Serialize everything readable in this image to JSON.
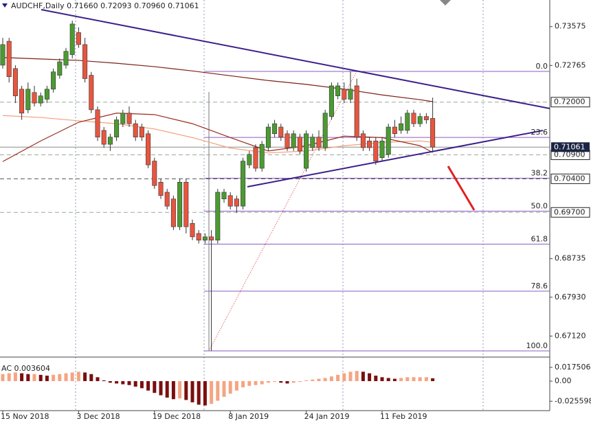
{
  "chart_data": {
    "type": "candlestick",
    "title": "AUDCHF,Daily  0.71660 0.72093 0.70960 0.71061",
    "categories": [
      "15 Nov 2018",
      null,
      null,
      null,
      null,
      null,
      null,
      null,
      null,
      null,
      null,
      null,
      "3 Dec 2018",
      null,
      null,
      null,
      null,
      null,
      null,
      null,
      null,
      null,
      null,
      null,
      "19 Dec 2018",
      null,
      null,
      null,
      null,
      null,
      null,
      null,
      null,
      null,
      null,
      null,
      "8 Jan 2019",
      null,
      null,
      null,
      null,
      null,
      null,
      null,
      null,
      null,
      null,
      null,
      "24 Jan 2019",
      null,
      null,
      null,
      null,
      null,
      null,
      null,
      null,
      null,
      null,
      null,
      "11 Feb 2019",
      null,
      null,
      null,
      null,
      null,
      null,
      null,
      null
    ],
    "candles": [
      [
        0.7277,
        0.7334,
        0.727,
        0.732
      ],
      [
        0.7327,
        0.7334,
        0.7241,
        0.7253
      ],
      [
        0.727,
        0.7277,
        0.7198,
        0.7213
      ],
      [
        0.7227,
        0.7234,
        0.7163,
        0.7177
      ],
      [
        0.7184,
        0.7241,
        0.7177,
        0.7227
      ],
      [
        0.722,
        0.7234,
        0.7191,
        0.7198
      ],
      [
        0.7198,
        0.722,
        0.7191,
        0.7213
      ],
      [
        0.7206,
        0.7234,
        0.7198,
        0.7227
      ],
      [
        0.7227,
        0.727,
        0.722,
        0.7263
      ],
      [
        0.7256,
        0.7291,
        0.7249,
        0.7284
      ],
      [
        0.7277,
        0.7313,
        0.727,
        0.7306
      ],
      [
        0.7299,
        0.737,
        0.7291,
        0.7363
      ],
      [
        0.7345,
        0.7356,
        0.7313,
        0.732
      ],
      [
        0.732,
        0.7334,
        0.7241,
        0.7249
      ],
      [
        0.7256,
        0.7263,
        0.7177,
        0.7184
      ],
      [
        0.7184,
        0.7191,
        0.7119,
        0.7127
      ],
      [
        0.7141,
        0.7148,
        0.7105,
        0.7112
      ],
      [
        0.7112,
        0.7134,
        0.7098,
        0.7127
      ],
      [
        0.7127,
        0.717,
        0.7119,
        0.7163
      ],
      [
        0.7155,
        0.7184,
        0.7148,
        0.7177
      ],
      [
        0.7177,
        0.7191,
        0.7148,
        0.7155
      ],
      [
        0.7155,
        0.7163,
        0.7119,
        0.7127
      ],
      [
        0.7148,
        0.7155,
        0.7119,
        0.7127
      ],
      [
        0.7134,
        0.7141,
        0.7062,
        0.7069
      ],
      [
        0.7077,
        0.7084,
        0.7019,
        0.7026
      ],
      [
        0.7033,
        0.704,
        0.6998,
        0.7005
      ],
      [
        0.7012,
        0.7019,
        0.6976,
        0.6983
      ],
      [
        0.6998,
        0.7005,
        0.6933,
        0.694
      ],
      [
        0.694,
        0.704,
        0.6933,
        0.7033
      ],
      [
        0.7033,
        0.704,
        0.6926,
        0.694
      ],
      [
        0.6947,
        0.6955,
        0.6912,
        0.6919
      ],
      [
        0.6926,
        0.6933,
        0.6905,
        0.6912
      ],
      [
        0.6912,
        0.6926,
        0.6905,
        0.6919
      ],
      [
        0.6919,
        0.6933,
        0.6681,
        0.6912
      ],
      [
        0.6912,
        0.7019,
        0.6905,
        0.7012
      ],
      [
        0.6998,
        0.7019,
        0.699,
        0.7012
      ],
      [
        0.7005,
        0.7012,
        0.6976,
        0.6983
      ],
      [
        0.6998,
        0.7005,
        0.6969,
        0.6983
      ],
      [
        0.6983,
        0.7084,
        0.6976,
        0.7077
      ],
      [
        0.7069,
        0.7098,
        0.7062,
        0.7091
      ],
      [
        0.7105,
        0.7112,
        0.7055,
        0.7062
      ],
      [
        0.7062,
        0.7119,
        0.7055,
        0.7112
      ],
      [
        0.7105,
        0.7155,
        0.7098,
        0.7148
      ],
      [
        0.7134,
        0.7163,
        0.7127,
        0.7155
      ],
      [
        0.7148,
        0.7155,
        0.7119,
        0.7127
      ],
      [
        0.7134,
        0.7141,
        0.7098,
        0.7105
      ],
      [
        0.7105,
        0.7141,
        0.7098,
        0.7134
      ],
      [
        0.7127,
        0.7134,
        0.7091,
        0.7098
      ],
      [
        0.7062,
        0.7141,
        0.7055,
        0.7134
      ],
      [
        0.7105,
        0.7134,
        0.7098,
        0.7127
      ],
      [
        0.7127,
        0.7141,
        0.7098,
        0.7105
      ],
      [
        0.7105,
        0.7184,
        0.7098,
        0.7177
      ],
      [
        0.717,
        0.7241,
        0.7163,
        0.7234
      ],
      [
        0.7213,
        0.7241,
        0.7206,
        0.7234
      ],
      [
        0.7227,
        0.7241,
        0.7198,
        0.7206
      ],
      [
        0.7206,
        0.7264,
        0.7198,
        0.7227
      ],
      [
        0.7234,
        0.7249,
        0.7119,
        0.7127
      ],
      [
        0.7134,
        0.7141,
        0.7098,
        0.7105
      ],
      [
        0.7119,
        0.7127,
        0.7098,
        0.7105
      ],
      [
        0.7119,
        0.7127,
        0.7069,
        0.7077
      ],
      [
        0.7084,
        0.7127,
        0.7077,
        0.7119
      ],
      [
        0.7091,
        0.7155,
        0.7084,
        0.7148
      ],
      [
        0.7148,
        0.7163,
        0.7127,
        0.7134
      ],
      [
        0.7141,
        0.717,
        0.7134,
        0.7155
      ],
      [
        0.7141,
        0.7184,
        0.7134,
        0.7177
      ],
      [
        0.7177,
        0.7184,
        0.7148,
        0.7155
      ],
      [
        0.7155,
        0.7177,
        0.7148,
        0.717
      ],
      [
        0.717,
        0.7177,
        0.7155,
        0.7163
      ],
      [
        0.7166,
        0.72093,
        0.7096,
        0.71061
      ]
    ],
    "up_color": "#4c9a32",
    "down_color": "#e8553f",
    "ylim": [
      0.6671,
      0.7413
    ],
    "yticks": [
      {
        "value": 0.6712,
        "label": "0.67120"
      },
      {
        "value": 0.6793,
        "label": "0.67930"
      },
      0.68735,
      0.72765,
      0.73575
    ],
    "moving_averages": [
      {
        "color": "#7a1f14",
        "x": [
          0,
          6,
          12,
          18,
          24,
          30,
          36,
          42,
          48,
          54,
          60,
          66,
          68
        ],
        "values": [
          0.7293,
          0.729,
          0.7287,
          0.7281,
          0.7274,
          0.7265,
          0.7255,
          0.7245,
          0.7237,
          0.7227,
          0.7215,
          0.7205,
          0.7201
        ]
      },
      {
        "color": "#f0a07a",
        "x": [
          0,
          6,
          12,
          18,
          24,
          30,
          36,
          42,
          48,
          54,
          60,
          66,
          68
        ],
        "values": [
          0.7172,
          0.7168,
          0.7161,
          0.7155,
          0.7144,
          0.7126,
          0.7104,
          0.7094,
          0.7098,
          0.7109,
          0.7116,
          0.7119,
          0.7116
        ]
      },
      {
        "color": "#9a2a1a",
        "x": [
          0,
          6,
          12,
          18,
          24,
          30,
          36,
          42,
          48,
          54,
          60,
          66,
          68
        ],
        "values": [
          0.7076,
          0.7119,
          0.7158,
          0.7177,
          0.7174,
          0.7155,
          0.7126,
          0.7098,
          0.7109,
          0.7129,
          0.7126,
          0.7109,
          0.7095
        ]
      }
    ],
    "levels": [
      {
        "value": 0.72,
        "label": "0.72000"
      },
      {
        "value": 0.709,
        "label": "0.70900"
      },
      {
        "value": 0.704,
        "label": "0.70400"
      },
      {
        "value": 0.697,
        "label": "0.69700"
      }
    ],
    "current_price": {
      "value": 0.71061,
      "label": "0.71061"
    },
    "fibonacci": [
      {
        "label": "0.0",
        "value": 0.7264
      },
      {
        "label": "23.6",
        "value": 0.71264
      },
      {
        "label": "38.2",
        "value": 0.70413
      },
      {
        "label": "50.0",
        "value": 0.69725
      },
      {
        "label": "61.8",
        "value": 0.69037
      },
      {
        "label": "78.6",
        "value": 0.68057
      },
      {
        "label": "100.0",
        "value": 0.6681
      }
    ],
    "indicator": {
      "type": "bar",
      "title": "AC 0.003604",
      "up_color": "#f4a582",
      "down_color": "#7a0f0f",
      "ylim": [
        -0.0376,
        0.0289
      ],
      "yticks": [
        -0.025598,
        {
          "value": 0,
          "label": "0.00"
        },
        0.017506
      ],
      "values": [
        0.009,
        0.01,
        0.011,
        0.01,
        0.009,
        0.009,
        0.008,
        0.007,
        0.008,
        0.009,
        0.01,
        0.011,
        0.012,
        0.011,
        0.009,
        0.005,
        0.001,
        -0.002,
        -0.003,
        -0.004,
        -0.005,
        -0.007,
        -0.009,
        -0.012,
        -0.015,
        -0.018,
        -0.021,
        -0.023,
        -0.022,
        -0.024,
        -0.027,
        -0.03,
        -0.031,
        -0.029,
        -0.025,
        -0.02,
        -0.016,
        -0.012,
        -0.008,
        -0.006,
        -0.005,
        -0.004,
        -0.002,
        -0.001,
        -0.002,
        -0.003,
        -0.002,
        -0.001,
        0.001,
        0.002,
        0.003,
        0.004,
        0.006,
        0.008,
        0.01,
        0.012,
        0.013,
        0.012,
        0.01,
        0.007,
        0.005,
        0.004,
        0.003,
        0.004,
        0.005,
        0.005,
        0.005,
        0.005,
        0.003604
      ]
    }
  }
}
